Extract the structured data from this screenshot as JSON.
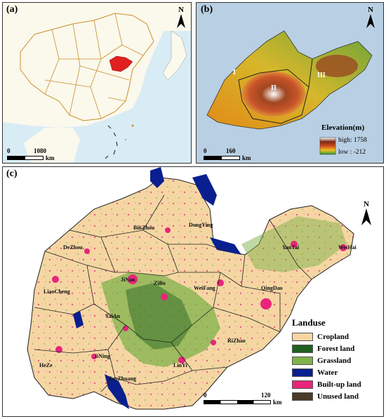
{
  "panels": {
    "a": {
      "label": "(a)",
      "north": "N",
      "scale_zero": "0",
      "scale_value": "1080",
      "scale_unit": "km"
    },
    "b": {
      "label": "(b)",
      "north": "N",
      "scale_zero": "0",
      "scale_value": "160",
      "scale_unit": "km",
      "elevation_title": "Elevation(m)",
      "high_label": "high: 1758",
      "low_label": "low : -212",
      "regions": [
        "I",
        "II",
        "III"
      ]
    },
    "c": {
      "label": "(c)",
      "north": "N",
      "scale_zero": "0",
      "scale_value": "120",
      "scale_unit": "km",
      "cities": [
        "BinZhou",
        "DongYing",
        "DeZhou",
        "YanTai",
        "WeiHai",
        "LiaoCheng",
        "JiNan",
        "ZiBo",
        "WeiFang",
        "QingDao",
        "TaiAn",
        "RiZhao",
        "HeZe",
        "JiNing",
        "LinYi",
        "ZaoZhuang"
      ]
    }
  },
  "legend": {
    "title": "Landuse",
    "items": [
      {
        "label": "Cropland",
        "color": "#f5d6a3"
      },
      {
        "label": "Forest land",
        "color": "#1f5f1f"
      },
      {
        "label": "Grassland",
        "color": "#7fb24a"
      },
      {
        "label": "Water",
        "color": "#0a1f8f"
      },
      {
        "label": "Built-up land",
        "color": "#e8257a"
      },
      {
        "label": "Unused land",
        "color": "#4a3b28"
      }
    ]
  },
  "colors": {
    "china_fill": "#fbf8ec",
    "china_border": "#c8902a",
    "highlight": "#e02020",
    "sea": "#d8ecf6",
    "sea_b": "#b9cfe3"
  }
}
